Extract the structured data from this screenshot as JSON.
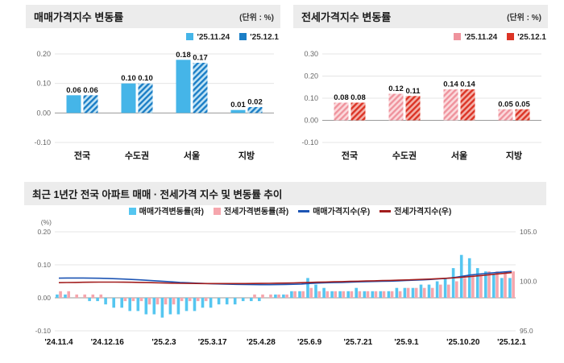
{
  "sale_panel": {
    "title": "매매가격지수 변동률",
    "unit": "(단위 : %)"
  },
  "jeonse_panel": {
    "title": "전세가격지수 변동률",
    "unit": "(단위 : %)"
  },
  "trend_panel": {
    "title": "최근 1년간 전국 아파트 매매 · 전세가격 지수 및 변동률 추이"
  },
  "chart_data": [
    {
      "id": "sale-bar",
      "type": "bar",
      "title": "매매가격지수 변동률",
      "unit": "(단위 : %)",
      "categories": [
        "전국",
        "수도권",
        "서울",
        "지방"
      ],
      "series": [
        {
          "name": "'25.11.24",
          "values": [
            0.06,
            0.1,
            0.18,
            0.01
          ],
          "color": "#45b5e8",
          "style": "solid"
        },
        {
          "name": "'25.12.1",
          "values": [
            0.06,
            0.1,
            0.17,
            0.02
          ],
          "color": "#1b7ec6",
          "style": "hatch",
          "hatch_bg": "#bfe3f5"
        }
      ],
      "ylim": [
        -0.1,
        0.2
      ],
      "yticks": [
        "0.20",
        "0.10",
        "0.00",
        "-0.10"
      ],
      "grid": true,
      "legend_position": "top-right"
    },
    {
      "id": "jeonse-bar",
      "type": "bar",
      "title": "전세가격지수 변동률",
      "unit": "(단위 : %)",
      "categories": [
        "전국",
        "수도권",
        "서울",
        "지방"
      ],
      "series": [
        {
          "name": "'25.11.24",
          "values": [
            0.08,
            0.12,
            0.14,
            0.05
          ],
          "color": "#ef939d",
          "style": "hatch",
          "hatch_bg": "#fbd9dc"
        },
        {
          "name": "'25.12.1",
          "values": [
            0.08,
            0.11,
            0.14,
            0.05
          ],
          "color": "#dc3426",
          "style": "hatch",
          "hatch_bg": "#f4b1a9"
        }
      ],
      "ylim": [
        -0.1,
        0.3
      ],
      "yticks": [
        "0.30",
        "0.20",
        "0.10",
        "0.00",
        "-0.10"
      ],
      "grid": true,
      "legend_position": "top-right"
    },
    {
      "id": "trend-combo",
      "type": "combo",
      "title": "최근 1년간 전국 아파트 매매 · 전세가격 지수 및 변동률 추이",
      "n_points": 57,
      "x_tick_labels": [
        "'24.11.4",
        "'24.12.16",
        "'25.2.3",
        "'25.3.17",
        "'25.4.28",
        "'25.6.9",
        "'25.7.21",
        "'25.9.1",
        "'25.10.20",
        "'25.12.1"
      ],
      "x_tick_indices": [
        0,
        6,
        13,
        19,
        25,
        31,
        37,
        43,
        50,
        56
      ],
      "left_axis": {
        "label": "(%)",
        "lim": [
          -0.1,
          0.2
        ],
        "ticks": [
          "0.20",
          "0.10",
          "0.00",
          "-0.10"
        ]
      },
      "right_axis": {
        "lim": [
          95.0,
          105.0
        ],
        "ticks": [
          "105.0",
          "100.0",
          "95.0"
        ]
      },
      "bar_series": [
        {
          "name": "매매가격변동률(좌)",
          "color": "#55c6f0",
          "values": [
            0.01,
            0.01,
            0.0,
            0.0,
            -0.01,
            -0.01,
            -0.02,
            -0.03,
            -0.03,
            -0.04,
            -0.04,
            -0.05,
            -0.05,
            -0.06,
            -0.05,
            -0.05,
            -0.04,
            -0.04,
            -0.03,
            -0.03,
            -0.02,
            -0.02,
            -0.02,
            -0.01,
            -0.01,
            -0.01,
            0.0,
            0.01,
            0.01,
            0.02,
            0.02,
            0.06,
            0.04,
            0.03,
            0.02,
            0.02,
            0.02,
            0.03,
            0.02,
            0.02,
            0.02,
            0.02,
            0.03,
            0.03,
            0.03,
            0.04,
            0.04,
            0.05,
            0.06,
            0.09,
            0.13,
            0.12,
            0.09,
            0.08,
            0.07,
            0.06,
            0.06
          ]
        },
        {
          "name": "전세가격변동률(좌)",
          "color": "#f6a6ad",
          "values": [
            0.02,
            0.02,
            0.01,
            0.01,
            0.01,
            0.01,
            0.0,
            0.0,
            -0.01,
            -0.01,
            -0.01,
            -0.02,
            -0.02,
            -0.02,
            -0.02,
            -0.01,
            -0.01,
            -0.01,
            -0.01,
            0.0,
            0.0,
            0.0,
            0.0,
            0.0,
            0.01,
            0.01,
            0.01,
            0.01,
            0.01,
            0.02,
            0.02,
            0.03,
            0.02,
            0.02,
            0.02,
            0.02,
            0.02,
            0.02,
            0.02,
            0.02,
            0.02,
            0.02,
            0.02,
            0.03,
            0.03,
            0.03,
            0.03,
            0.04,
            0.04,
            0.05,
            0.06,
            0.07,
            0.07,
            0.08,
            0.08,
            0.08,
            0.08
          ]
        }
      ],
      "line_series": [
        {
          "name": "매매가격지수(우)",
          "color": "#1d55b4",
          "values": [
            100.32,
            100.33,
            100.33,
            100.33,
            100.32,
            100.31,
            100.29,
            100.26,
            100.23,
            100.19,
            100.15,
            100.1,
            100.05,
            99.99,
            99.94,
            99.89,
            99.85,
            99.81,
            99.78,
            99.75,
            99.73,
            99.71,
            99.69,
            99.68,
            99.67,
            99.66,
            99.66,
            99.67,
            99.68,
            99.7,
            99.72,
            99.78,
            99.82,
            99.85,
            99.87,
            99.89,
            99.91,
            99.94,
            99.96,
            99.98,
            100.0,
            100.02,
            100.05,
            100.08,
            100.11,
            100.15,
            100.19,
            100.24,
            100.3,
            100.39,
            100.52,
            100.64,
            100.73,
            100.81,
            100.88,
            100.94,
            101.0
          ]
        },
        {
          "name": "전세가격지수(우)",
          "color": "#a21d1d",
          "values": [
            99.86,
            99.88,
            99.89,
            99.9,
            99.91,
            99.92,
            99.92,
            99.92,
            99.91,
            99.9,
            99.89,
            99.87,
            99.85,
            99.83,
            99.81,
            99.8,
            99.79,
            99.78,
            99.77,
            99.77,
            99.77,
            99.77,
            99.77,
            99.77,
            99.78,
            99.79,
            99.8,
            99.81,
            99.82,
            99.84,
            99.86,
            99.89,
            99.91,
            99.93,
            99.95,
            99.97,
            99.99,
            100.01,
            100.03,
            100.05,
            100.07,
            100.09,
            100.11,
            100.14,
            100.17,
            100.2,
            100.23,
            100.27,
            100.31,
            100.36,
            100.42,
            100.49,
            100.56,
            100.64,
            100.72,
            100.8,
            100.88
          ]
        }
      ]
    }
  ]
}
